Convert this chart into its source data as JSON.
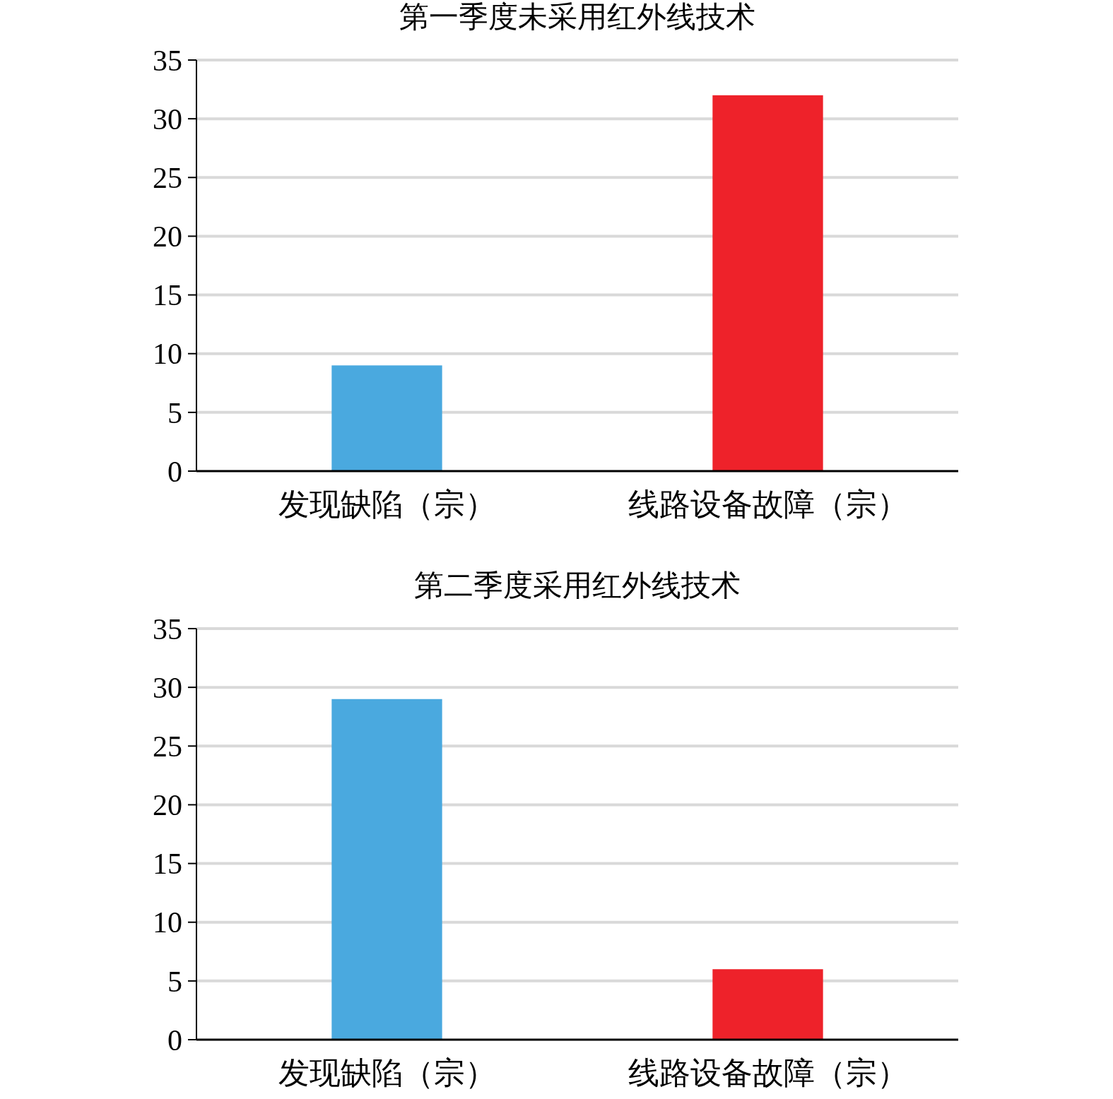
{
  "chart_data": [
    {
      "type": "bar",
      "title": "第一季度未采用红外线技术",
      "categories": [
        "发现缺陷（宗）",
        "线路设备故障（宗）"
      ],
      "values": [
        9,
        32
      ],
      "colors": [
        "#4aa9df",
        "#ee222a"
      ],
      "ylim": [
        0,
        35
      ],
      "yticks": [
        0,
        5,
        10,
        15,
        20,
        25,
        30,
        35
      ],
      "grid": "y"
    },
    {
      "type": "bar",
      "title": "第二季度采用红外线技术",
      "categories": [
        "发现缺陷（宗）",
        "线路设备故障（宗）"
      ],
      "values": [
        29,
        6
      ],
      "colors": [
        "#4aa9df",
        "#ee222a"
      ],
      "ylim": [
        0,
        35
      ],
      "yticks": [
        0,
        5,
        10,
        15,
        20,
        25,
        30,
        35
      ],
      "grid": "y"
    }
  ]
}
